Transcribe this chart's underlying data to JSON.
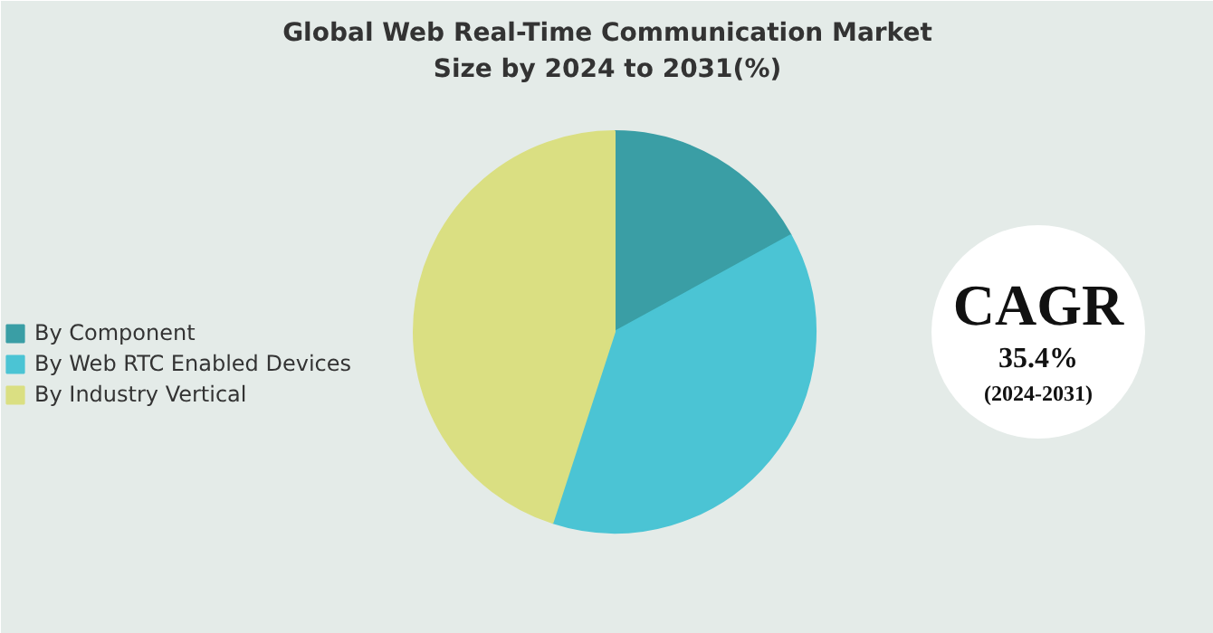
{
  "chart_data": {
    "type": "pie",
    "title": "Global Web Real-Time Communication Market\nSize by 2024 to 2031(%)",
    "categories": [
      "By Component",
      "By Web RTC Enabled Devices",
      "By Industry Vertical"
    ],
    "values": [
      17,
      38,
      45
    ],
    "colors": [
      "#3a9ea5",
      "#4bc4d4",
      "#dadf82"
    ],
    "legend": "left",
    "annotations": [
      "CAGR",
      "35.4%",
      "(2024-2031)"
    ]
  }
}
